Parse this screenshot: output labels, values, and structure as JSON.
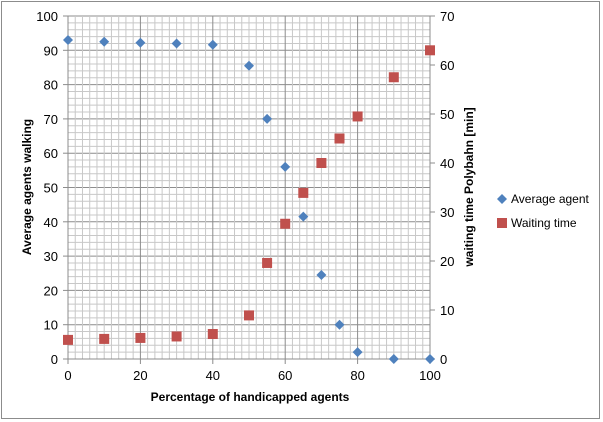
{
  "chart_data": {
    "type": "scatter",
    "xlabel": "Percentage of handicapped agents",
    "ylabel_left": "Average agents walking",
    "ylabel_right": "waiting time Polybahn  [min]",
    "xlim": [
      0,
      100
    ],
    "xticks": [
      0,
      20,
      40,
      60,
      80,
      100
    ],
    "ylim_left": [
      0,
      100
    ],
    "yticks_left": [
      0,
      10,
      20,
      30,
      40,
      50,
      60,
      70,
      80,
      90,
      100
    ],
    "ylim_right": [
      0,
      70
    ],
    "yticks_right": [
      0,
      10,
      20,
      30,
      40,
      50,
      60,
      70
    ],
    "grid": true,
    "legend_position": "right",
    "series": [
      {
        "name": "Average agent",
        "axis": "left",
        "marker": "diamond",
        "color": "#4F81BD",
        "x": [
          0,
          10,
          20,
          30,
          40,
          50,
          55,
          60,
          65,
          70,
          75,
          80,
          90,
          100
        ],
        "y": [
          93,
          92.5,
          92.2,
          92,
          91.6,
          85.5,
          70,
          56,
          41.5,
          24.5,
          10,
          2,
          0,
          0
        ]
      },
      {
        "name": "Waiting time",
        "axis": "right",
        "marker": "square",
        "color": "#C0504D",
        "x": [
          0,
          10,
          20,
          30,
          40,
          50,
          55,
          60,
          65,
          70,
          75,
          80,
          90,
          100
        ],
        "y": [
          3.9,
          4.1,
          4.3,
          4.6,
          5.1,
          8.9,
          19.6,
          27.6,
          33.9,
          40,
          45,
          49.5,
          57.5,
          63
        ]
      }
    ]
  }
}
